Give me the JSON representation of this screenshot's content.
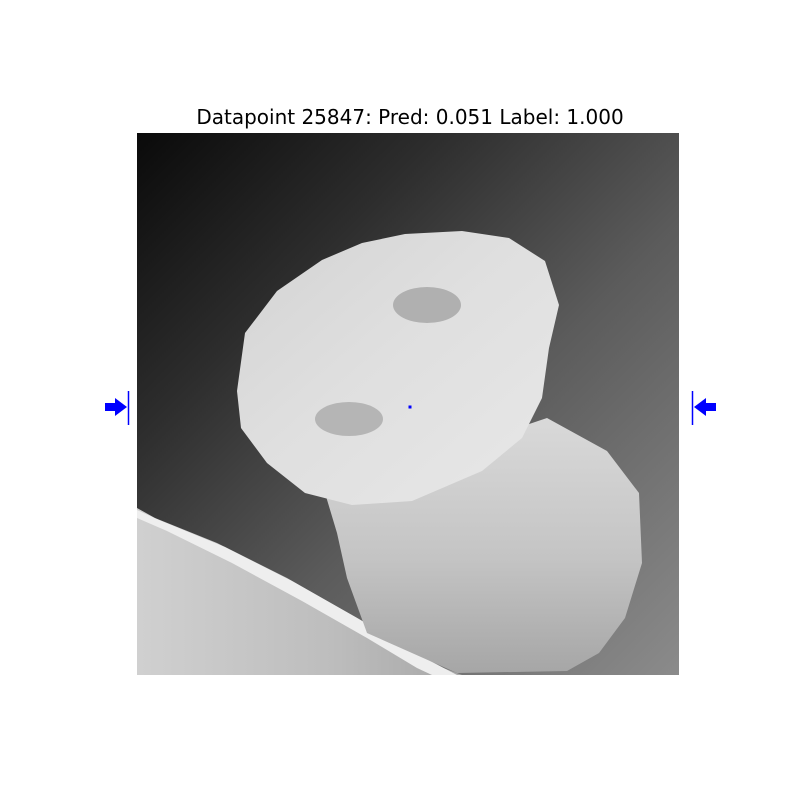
{
  "figure": {
    "title": "Datapoint 25847: Pred: 0.051 Label: 1.000"
  },
  "colors": {
    "marker": "#0000ff",
    "background": "#ffffff"
  },
  "icons": {
    "left_marker": "right-arrow-with-bar-icon",
    "right_marker": "left-arrow-with-bar-icon",
    "center_marker": "point-marker-icon"
  }
}
